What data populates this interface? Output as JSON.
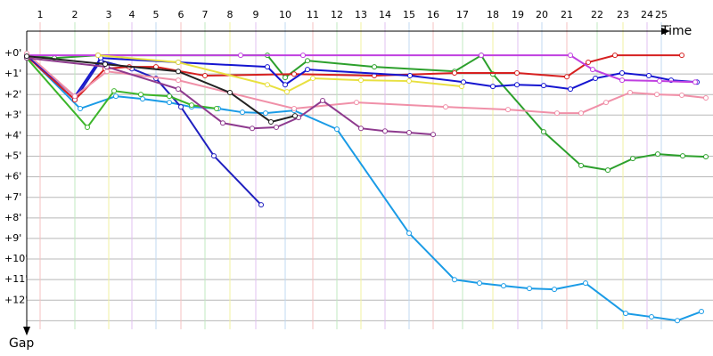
{
  "chart_data": {
    "type": "line",
    "x_label": "Time",
    "y_label": "Gap",
    "xlim": [
      0,
      770
    ],
    "ylim": [
      -1,
      13.5
    ],
    "y_reversed": true,
    "grid": true,
    "xticks": [
      {
        "value": 15,
        "label": "1"
      },
      {
        "value": 54,
        "label": "2"
      },
      {
        "value": 92,
        "label": "3"
      },
      {
        "value": 118,
        "label": "4"
      },
      {
        "value": 145,
        "label": "5"
      },
      {
        "value": 173,
        "label": "6"
      },
      {
        "value": 200,
        "label": "7"
      },
      {
        "value": 228,
        "label": "8"
      },
      {
        "value": 257,
        "label": "9"
      },
      {
        "value": 290,
        "label": "10"
      },
      {
        "value": 321,
        "label": "11"
      },
      {
        "value": 348,
        "label": "12"
      },
      {
        "value": 375,
        "label": "13"
      },
      {
        "value": 402,
        "label": "14"
      },
      {
        "value": 429,
        "label": "15"
      },
      {
        "value": 456,
        "label": "16"
      },
      {
        "value": 489,
        "label": "17"
      },
      {
        "value": 523,
        "label": "18"
      },
      {
        "value": 551,
        "label": "19"
      },
      {
        "value": 578,
        "label": "20"
      },
      {
        "value": 606,
        "label": "21"
      },
      {
        "value": 640,
        "label": "22"
      },
      {
        "value": 669,
        "label": "23"
      },
      {
        "value": 696,
        "label": "24"
      },
      {
        "value": 712,
        "label": "25"
      }
    ],
    "yticks": [
      {
        "value": 0,
        "label": "+0'"
      },
      {
        "value": 1,
        "label": "+1'"
      },
      {
        "value": 2,
        "label": "+2'"
      },
      {
        "value": 3,
        "label": "+3'"
      },
      {
        "value": 4,
        "label": "+4'"
      },
      {
        "value": 5,
        "label": "+5'"
      },
      {
        "value": 6,
        "label": "+6'"
      },
      {
        "value": 7,
        "label": "+7'"
      },
      {
        "value": 8,
        "label": "+8'"
      },
      {
        "value": 9,
        "label": "+9'"
      },
      {
        "value": 10,
        "label": "+10'"
      },
      {
        "value": 11,
        "label": "+11'"
      },
      {
        "value": 12,
        "label": "+12'"
      }
    ],
    "series": [
      {
        "color": "#1a9be6",
        "x": [
          0,
          60,
          100,
          130,
          160,
          185,
          215,
          242,
          268,
          300,
          348,
          429,
          480,
          508,
          535,
          564,
          592,
          627,
          672,
          701,
          730,
          757
        ],
        "values": [
          0.09,
          2.68,
          2.08,
          2.21,
          2.38,
          2.6,
          2.68,
          2.86,
          2.9,
          2.77,
          3.68,
          8.74,
          11.0,
          11.17,
          11.3,
          11.43,
          11.47,
          11.17,
          12.64,
          12.81,
          12.99,
          12.55
        ]
      },
      {
        "color": "#1f1fbf",
        "x": [
          0,
          54,
          83,
          118,
          145,
          173,
          210,
          263
        ],
        "values": [
          0.13,
          2.25,
          0.35,
          0.74,
          1.21,
          2.6,
          4.98,
          7.36
        ]
      },
      {
        "color": "#2ca02c",
        "x": [
          0,
          31,
          80,
          270,
          290,
          315,
          390,
          480,
          510,
          523,
          580,
          622,
          652,
          680,
          708,
          736,
          762
        ],
        "values": [
          0.09,
          0.22,
          0.09,
          0.09,
          1.17,
          0.35,
          0.65,
          0.87,
          0.09,
          1.0,
          3.81,
          5.45,
          5.67,
          5.11,
          4.89,
          4.98,
          5.02
        ]
      },
      {
        "color": "#3cb52a",
        "x": [
          0,
          68,
          98,
          128,
          160,
          185,
          213
        ],
        "values": [
          0.22,
          3.59,
          1.82,
          1.99,
          2.08,
          2.51,
          2.68
        ]
      },
      {
        "color": "#d62020",
        "x": [
          0,
          54,
          88,
          115,
          145,
          200,
          300,
          390,
          480,
          550,
          606,
          630,
          660,
          735
        ],
        "values": [
          0.13,
          2.25,
          0.74,
          0.65,
          0.65,
          1.08,
          1.0,
          1.08,
          0.95,
          0.95,
          1.13,
          0.43,
          0.09,
          0.09
        ]
      },
      {
        "color": "#1515d0",
        "x": [
          0,
          54,
          83,
          170,
          270,
          290,
          315,
          430,
          490,
          523,
          550,
          580,
          610,
          638,
          668,
          698,
          723,
          752
        ],
        "values": [
          0.09,
          2.08,
          0.22,
          0.43,
          0.65,
          1.52,
          0.78,
          1.08,
          1.39,
          1.6,
          1.52,
          1.56,
          1.73,
          1.21,
          0.95,
          1.08,
          1.3,
          1.39
        ]
      },
      {
        "color": "#c040e0",
        "x": [
          0,
          80,
          240,
          310,
          510,
          610,
          635,
          668,
          710,
          750
        ],
        "values": [
          0.09,
          0.09,
          0.09,
          0.09,
          0.09,
          0.09,
          0.78,
          1.3,
          1.34,
          1.39
        ]
      },
      {
        "color": "#f090a8",
        "x": [
          0,
          54,
          90,
          170,
          300,
          370,
          470,
          540,
          595,
          622,
          650,
          677,
          707,
          735,
          762
        ],
        "values": [
          0,
          2.08,
          0.87,
          1.3,
          2.68,
          2.38,
          2.6,
          2.73,
          2.9,
          2.9,
          2.38,
          1.9,
          1.99,
          2.03,
          2.16
        ]
      },
      {
        "color": "#8e3a8e",
        "x": [
          0,
          90,
          170,
          220,
          253,
          280,
          305,
          332,
          375,
          402,
          429,
          456
        ],
        "values": [
          0.22,
          0.65,
          1.73,
          3.38,
          3.64,
          3.59,
          3.12,
          2.29,
          3.64,
          3.77,
          3.85,
          3.94
        ]
      },
      {
        "color": "#e8e040",
        "x": [
          80,
          170,
          270,
          292,
          321,
          375,
          429,
          488
        ],
        "values": [
          0.09,
          0.43,
          1.52,
          1.86,
          1.21,
          1.3,
          1.34,
          1.6
        ]
      },
      {
        "color": "#222222",
        "x": [
          0,
          88,
          170,
          228,
          274,
          301
        ],
        "values": [
          0.13,
          0.52,
          0.87,
          1.9,
          3.33,
          3.03
        ]
      }
    ]
  }
}
